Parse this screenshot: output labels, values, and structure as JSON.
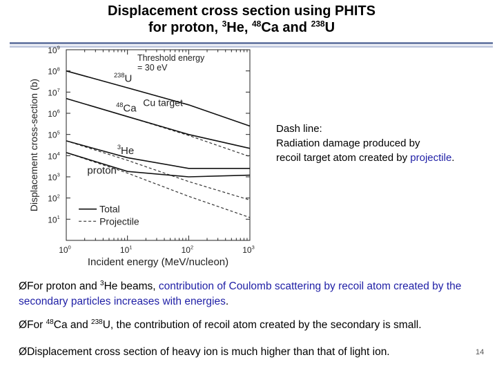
{
  "title": {
    "line1": "Displacement cross section using PHITS",
    "line2_prefix": "for proton, ",
    "he_mass": "3",
    "he_sym": "He, ",
    "ca_mass": "48",
    "ca_sym": "Ca and ",
    "u_mass": "238",
    "u_sym": "U"
  },
  "chart_data": {
    "type": "line",
    "xlabel": "Incident energy (MeV/nucleon)",
    "ylabel": "Displacement cross-section (b)",
    "x_scale": "log",
    "y_scale": "log",
    "xlim": [
      1,
      1000
    ],
    "ylim": [
      1,
      1000000000
    ],
    "x_ticks": [
      {
        "value": 1,
        "base": "10",
        "exp": "0"
      },
      {
        "value": 10,
        "base": "10",
        "exp": "1"
      },
      {
        "value": 100,
        "base": "10",
        "exp": "2"
      },
      {
        "value": 1000,
        "base": "10",
        "exp": "3"
      }
    ],
    "y_ticks": [
      {
        "value": 10,
        "base": "10",
        "exp": "1"
      },
      {
        "value": 100,
        "base": "10",
        "exp": "2"
      },
      {
        "value": 1000,
        "base": "10",
        "exp": "3"
      },
      {
        "value": 10000,
        "base": "10",
        "exp": "4"
      },
      {
        "value": 100000,
        "base": "10",
        "exp": "5"
      },
      {
        "value": 1000000,
        "base": "10",
        "exp": "6"
      },
      {
        "value": 10000000,
        "base": "10",
        "exp": "7"
      },
      {
        "value": 100000000,
        "base": "10",
        "exp": "8"
      },
      {
        "value": 1000000000,
        "base": "10",
        "exp": "9"
      }
    ],
    "annotations": {
      "threshold_line1": "Threshold energy",
      "threshold_line2": "= 30 eV",
      "target": "Cu target"
    },
    "legend": {
      "placement": "bottom-left",
      "total": "Total",
      "projectile": "Projectile"
    },
    "series": [
      {
        "name": "238U",
        "label_mass": "238",
        "label_sym": "U",
        "total": [
          [
            1,
            100000000
          ],
          [
            10,
            16000000
          ],
          [
            100,
            2500000
          ],
          [
            1000,
            250000
          ]
        ],
        "projectile": [
          [
            1,
            100000000
          ],
          [
            10,
            16000000
          ],
          [
            100,
            2500000
          ],
          [
            1000,
            250000
          ]
        ]
      },
      {
        "name": "48Ca",
        "label_mass": "48",
        "label_sym": "Ca",
        "total": [
          [
            1,
            5000000
          ],
          [
            10,
            700000
          ],
          [
            100,
            100000
          ],
          [
            1000,
            22000
          ]
        ],
        "projectile": [
          [
            1,
            5000000
          ],
          [
            10,
            700000
          ],
          [
            100,
            90000
          ],
          [
            1000,
            9000
          ]
        ]
      },
      {
        "name": "3He",
        "label_mass": "3",
        "label_sym": "He",
        "total": [
          [
            1,
            50000
          ],
          [
            10,
            8000
          ],
          [
            100,
            2500
          ],
          [
            1000,
            2500
          ]
        ],
        "projectile": [
          [
            1,
            50000
          ],
          [
            10,
            6000
          ],
          [
            100,
            600
          ],
          [
            1000,
            80
          ]
        ]
      },
      {
        "name": "proton",
        "label_mass": "",
        "label_sym": "proton",
        "total": [
          [
            1,
            14000
          ],
          [
            10,
            1800
          ],
          [
            100,
            1000
          ],
          [
            1000,
            1200
          ]
        ],
        "projectile": [
          [
            1,
            14000
          ],
          [
            10,
            1500
          ],
          [
            100,
            120
          ],
          [
            1000,
            12
          ]
        ]
      }
    ]
  },
  "note": {
    "line1": "Dash line:",
    "line2": "Radiation damage produced by",
    "line3_prefix": "recoil target atom created by ",
    "line3_highlight": "projectile",
    "line3_suffix": "."
  },
  "bullets": {
    "b1_prefix": "For proton and ",
    "b1_mass": "3",
    "b1_mid": "He beams, ",
    "b1_highlight": "contribution of Coulomb scattering by recoil atom created by the secondary particles increases with energies",
    "b1_suffix": ".",
    "b2_prefix": "For ",
    "b2_mass1": "48",
    "b2_mid1": "Ca and ",
    "b2_mass2": "238",
    "b2_rest": "U, the contribution of recoil atom created by the secondary is small.",
    "b3_text": "Displacement cross section of heavy ion is much higher than that of light ion.",
    "marker": "Ø"
  },
  "page_number": "14"
}
